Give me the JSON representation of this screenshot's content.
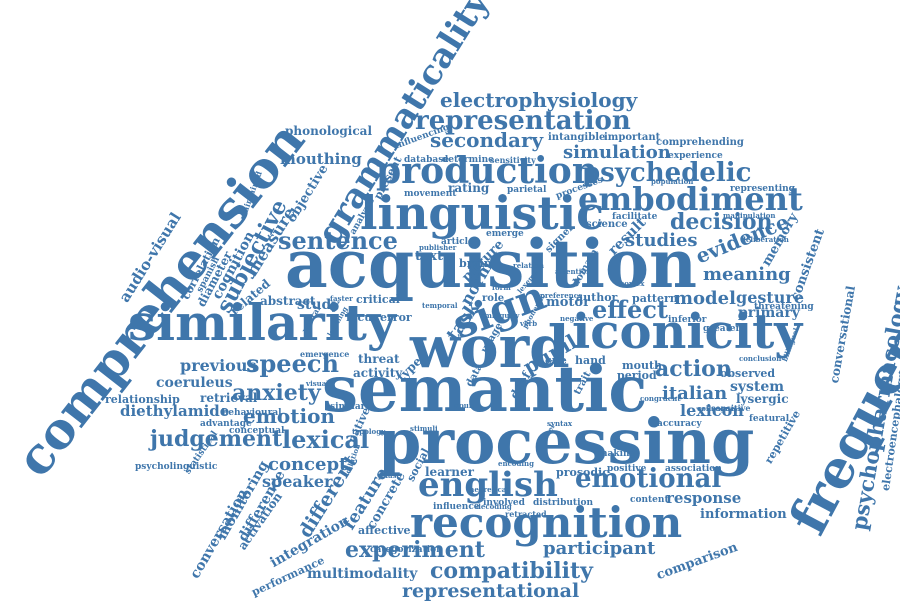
{
  "color": "#3f76ab",
  "words": [
    {
      "id": "acquisition",
      "text": "acquisition"
    },
    {
      "id": "semantic",
      "text": "semantic"
    },
    {
      "id": "processing",
      "text": "processing"
    },
    {
      "id": "word",
      "text": "word"
    },
    {
      "id": "similarity",
      "text": "similarity"
    },
    {
      "id": "iconicity",
      "text": "iconicity"
    },
    {
      "id": "comprehension",
      "text": "comprehension"
    },
    {
      "id": "frequency",
      "text": "frequency"
    },
    {
      "id": "linguistic",
      "text": "linguistic"
    },
    {
      "id": "recognition",
      "text": "recognition"
    },
    {
      "id": "grammaticality",
      "text": "grammaticality"
    },
    {
      "id": "english",
      "text": "english"
    },
    {
      "id": "production",
      "text": "production"
    },
    {
      "id": "embodiment",
      "text": "embodiment"
    },
    {
      "id": "sign",
      "text": "sign"
    },
    {
      "id": "psychopharmacology",
      "text": "psychopharmacology"
    },
    {
      "id": "representation",
      "text": "representation"
    },
    {
      "id": "electrophysiology",
      "text": "electrophysiology"
    },
    {
      "id": "psychedelic",
      "text": "psychedelic"
    },
    {
      "id": "sentence",
      "text": "sentence"
    },
    {
      "id": "speech",
      "text": "speech"
    },
    {
      "id": "effect",
      "text": "effect"
    },
    {
      "id": "emotional",
      "text": "emotional"
    },
    {
      "id": "lexical",
      "text": "lexical"
    },
    {
      "id": "experiment",
      "text": "experiment"
    },
    {
      "id": "compatibility",
      "text": "compatibility"
    },
    {
      "id": "representational",
      "text": "representational"
    },
    {
      "id": "participant",
      "text": "participant"
    },
    {
      "id": "judgement",
      "text": "judgement"
    },
    {
      "id": "anxiety",
      "text": "anxiety"
    },
    {
      "id": "emotion",
      "text": "emotion"
    },
    {
      "id": "decision",
      "text": "decision"
    },
    {
      "id": "evidence",
      "text": "evidence"
    },
    {
      "id": "secondary",
      "text": "secondary"
    },
    {
      "id": "simulation",
      "text": "simulation"
    },
    {
      "id": "subjective",
      "text": "subjective"
    },
    {
      "id": "audio-visual",
      "text": "audio-visual"
    },
    {
      "id": "action",
      "text": "action"
    },
    {
      "id": "meaning",
      "text": "meaning"
    },
    {
      "id": "model",
      "text": "model"
    },
    {
      "id": "gesture",
      "text": "gesture"
    },
    {
      "id": "studies",
      "text": "studies"
    },
    {
      "id": "italian",
      "text": "italian"
    },
    {
      "id": "lexicon",
      "text": "lexicon"
    },
    {
      "id": "concept",
      "text": "concept"
    },
    {
      "id": "speaker",
      "text": "speaker"
    },
    {
      "id": "different",
      "text": "different"
    },
    {
      "id": "feature",
      "text": "feature"
    },
    {
      "id": "integration",
      "text": "integration"
    },
    {
      "id": "response",
      "text": "response"
    },
    {
      "id": "information",
      "text": "information"
    },
    {
      "id": "comparison",
      "text": "comparison"
    },
    {
      "id": "multimodality",
      "text": "multimodality"
    },
    {
      "id": "previous",
      "text": "previous"
    },
    {
      "id": "coeruleus",
      "text": "coeruleus"
    },
    {
      "id": "diethylamide",
      "text": "diethylamide"
    },
    {
      "id": "mouthing",
      "text": "mouthing"
    },
    {
      "id": "measure",
      "text": "measure"
    },
    {
      "id": "cognition",
      "text": "cognition"
    },
    {
      "id": "objective",
      "text": "objective"
    },
    {
      "id": "conversational",
      "text": "conversational"
    },
    {
      "id": "electroencephalography",
      "text": "electroencephalography"
    },
    {
      "id": "conversation",
      "text": "conversation"
    },
    {
      "id": "monitoring",
      "text": "monitoring"
    },
    {
      "id": "difference",
      "text": "difference"
    },
    {
      "id": "activation",
      "text": "activation"
    },
    {
      "id": "performance",
      "text": "performance"
    },
    {
      "id": "pupil",
      "text": "pupil"
    },
    {
      "id": "task",
      "text": "task"
    },
    {
      "id": "norm",
      "text": "norm"
    },
    {
      "id": "motor",
      "text": "motor"
    },
    {
      "id": "result",
      "text": "result"
    },
    {
      "id": "primary",
      "text": "primary"
    },
    {
      "id": "memory",
      "text": "memory"
    },
    {
      "id": "consistent",
      "text": "consistent"
    },
    {
      "id": "system",
      "text": "system"
    },
    {
      "id": "observed",
      "text": "observed"
    },
    {
      "id": "lysergic",
      "text": "lysergic"
    },
    {
      "id": "phonological",
      "text": "phonological"
    },
    {
      "id": "study",
      "text": "study"
    },
    {
      "id": "related",
      "text": "related"
    },
    {
      "id": "abstract",
      "text": "abstract"
    },
    {
      "id": "retrieval",
      "text": "retrieval"
    },
    {
      "id": "relationship",
      "text": "relationship"
    },
    {
      "id": "correlation",
      "text": "correlation"
    },
    {
      "id": "diameter",
      "text": "diameter"
    },
    {
      "id": "rating",
      "text": "rating"
    },
    {
      "id": "learner",
      "text": "learner"
    },
    {
      "id": "concrete",
      "text": "concrete"
    },
    {
      "id": "affective",
      "text": "affective"
    },
    {
      "id": "prosodic",
      "text": "prosodic"
    },
    {
      "id": "mouth",
      "text": "mouth"
    },
    {
      "id": "hand",
      "text": "hand"
    },
    {
      "id": "period",
      "text": "period"
    },
    {
      "id": "author",
      "text": "author"
    },
    {
      "id": "pattern",
      "text": "pattern"
    },
    {
      "id": "picture",
      "text": "picture"
    },
    {
      "id": "science",
      "text": "science"
    },
    {
      "id": "facilitate",
      "text": "facilitate"
    },
    {
      "id": "intangible",
      "text": "intangible"
    },
    {
      "id": "important",
      "text": "important"
    },
    {
      "id": "comprehending",
      "text": "comprehending"
    },
    {
      "id": "experience",
      "text": "experience"
    },
    {
      "id": "database",
      "text": "database"
    },
    {
      "id": "determine",
      "text": "determine"
    },
    {
      "id": "sensitivity",
      "text": "sensitivity"
    },
    {
      "id": "influencing",
      "text": "influencing"
    },
    {
      "id": "present",
      "text": "present"
    },
    {
      "id": "movement",
      "text": "movement"
    },
    {
      "id": "parietal",
      "text": "parietal"
    },
    {
      "id": "processes",
      "text": "processes"
    },
    {
      "id": "representing",
      "text": "representing"
    },
    {
      "id": "threatening",
      "text": "threatening"
    },
    {
      "id": "repetitive",
      "text": "repetitive"
    },
    {
      "id": "featural",
      "text": "featural"
    },
    {
      "id": "accuracy",
      "text": "accuracy"
    },
    {
      "id": "positive",
      "text": "positive"
    },
    {
      "id": "association",
      "text": "association"
    },
    {
      "id": "content",
      "text": "content"
    },
    {
      "id": "distribution",
      "text": "distribution"
    },
    {
      "id": "involved",
      "text": "involved"
    },
    {
      "id": "influence",
      "text": "influence"
    },
    {
      "id": "retracted",
      "text": "retracted"
    },
    {
      "id": "making",
      "text": "making"
    },
    {
      "id": "social",
      "text": "social"
    },
    {
      "id": "categorization",
      "text": "categorization"
    },
    {
      "id": "psycholinguistic",
      "text": "psycholinguistic"
    },
    {
      "id": "statistical",
      "text": "statistical"
    },
    {
      "id": "behavioural",
      "text": "behavioural"
    },
    {
      "id": "similar",
      "text": "similar"
    },
    {
      "id": "native",
      "text": "native"
    },
    {
      "id": "threat",
      "text": "threat"
    },
    {
      "id": "activity",
      "text": "activity"
    },
    {
      "id": "locus",
      "text": "locus"
    },
    {
      "id": "error",
      "text": "error"
    },
    {
      "id": "critical",
      "text": "critical"
    },
    {
      "id": "text",
      "text": "text"
    },
    {
      "id": "brain",
      "text": "brain"
    },
    {
      "id": "role",
      "text": "role"
    },
    {
      "id": "cue",
      "text": "cue"
    },
    {
      "id": "deaf",
      "text": "deaf"
    },
    {
      "id": "type",
      "text": "type"
    },
    {
      "id": "article",
      "text": "article"
    },
    {
      "id": "emerge",
      "text": "emerge"
    },
    {
      "id": "signer",
      "text": "signer"
    },
    {
      "id": "inferior",
      "text": "inferior"
    },
    {
      "id": "greater",
      "text": "greater"
    },
    {
      "id": "sensitive",
      "text": "sensitive"
    },
    {
      "id": "conceptual",
      "text": "conceptual"
    },
    {
      "id": "advantage",
      "text": "advantage"
    },
    {
      "id": "spanish",
      "text": "spanish"
    },
    {
      "id": "maintained",
      "text": "maintained"
    },
    {
      "id": "analysis",
      "text": "analysis"
    },
    {
      "id": "emergence",
      "text": "emergence"
    },
    {
      "id": "neural",
      "text": "neural"
    },
    {
      "id": "publisher",
      "text": "publisher"
    },
    {
      "id": "population",
      "text": "population"
    },
    {
      "id": "manipulation",
      "text": "manipulation"
    },
    {
      "id": "deliberation",
      "text": "deliberation"
    },
    {
      "id": "bilingual",
      "text": "bilingual"
    },
    {
      "id": "conclusion",
      "text": "conclusion"
    },
    {
      "id": "colleague",
      "text": "colleague"
    },
    {
      "id": "congruent",
      "text": "congruent"
    },
    {
      "id": "relation",
      "text": "relation"
    },
    {
      "id": "preference",
      "text": "preference"
    },
    {
      "id": "ambiguity",
      "text": "ambiguity"
    },
    {
      "id": "phonemic",
      "text": "phonemic"
    },
    {
      "id": "dilution",
      "text": "dilution"
    },
    {
      "id": "typology",
      "text": "typology"
    },
    {
      "id": "stimuli",
      "text": "stimuli"
    },
    {
      "id": "syntax",
      "text": "syntax"
    },
    {
      "id": "visual",
      "text": "visual"
    },
    {
      "id": "attention",
      "text": "attention"
    },
    {
      "id": "cortex",
      "text": "cortex"
    },
    {
      "id": "domain",
      "text": "domain"
    },
    {
      "id": "usage",
      "text": "usage"
    },
    {
      "id": "data",
      "text": "data"
    },
    {
      "id": "trait",
      "text": "trait"
    },
    {
      "id": "phase",
      "text": "phase"
    },
    {
      "id": "theoretical",
      "text": "theoretical"
    },
    {
      "id": "decoding",
      "text": "decoding"
    },
    {
      "id": "encoding",
      "text": "encoding"
    },
    {
      "id": "label",
      "text": "label"
    },
    {
      "id": "verb",
      "text": "verb"
    },
    {
      "id": "noun",
      "text": "noun"
    },
    {
      "id": "form",
      "text": "form"
    },
    {
      "id": "lexeme",
      "text": "lexeme"
    },
    {
      "id": "temporal",
      "text": "temporal"
    },
    {
      "id": "faster",
      "text": "faster"
    },
    {
      "id": "learning",
      "text": "learning"
    },
    {
      "id": "negative",
      "text": "negative"
    },
    {
      "id": "processed",
      "text": "processed"
    }
  ]
}
